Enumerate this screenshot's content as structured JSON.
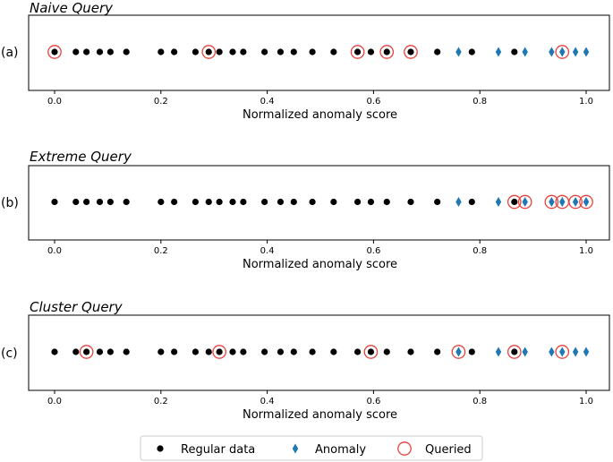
{
  "chart_data": [
    {
      "type": "scatter",
      "panel_label": "(a)",
      "title": "Naive Query",
      "xlabel": "Normalized anomaly score",
      "xlim": [
        0.0,
        1.0
      ],
      "xticks": [
        "0.0",
        "0.2",
        "0.4",
        "0.6",
        "0.8",
        "1.0"
      ],
      "regular": [
        0.0,
        0.04,
        0.06,
        0.085,
        0.105,
        0.135,
        0.2,
        0.225,
        0.265,
        0.29,
        0.31,
        0.335,
        0.355,
        0.395,
        0.425,
        0.45,
        0.485,
        0.525,
        0.57,
        0.595,
        0.625,
        0.67,
        0.72,
        0.785,
        0.865
      ],
      "anomaly": [
        0.76,
        0.835,
        0.885,
        0.935,
        0.955,
        0.98,
        1.0
      ],
      "queried": [
        0.0,
        0.29,
        0.57,
        0.625,
        0.67,
        0.955
      ]
    },
    {
      "type": "scatter",
      "panel_label": "(b)",
      "title": "Extreme Query",
      "xlabel": "Normalized anomaly score",
      "xlim": [
        0.0,
        1.0
      ],
      "xticks": [
        "0.0",
        "0.2",
        "0.4",
        "0.6",
        "0.8",
        "1.0"
      ],
      "regular": [
        0.0,
        0.04,
        0.06,
        0.085,
        0.105,
        0.135,
        0.2,
        0.225,
        0.265,
        0.29,
        0.31,
        0.335,
        0.355,
        0.395,
        0.425,
        0.45,
        0.485,
        0.525,
        0.57,
        0.595,
        0.625,
        0.67,
        0.72,
        0.785,
        0.865
      ],
      "anomaly": [
        0.76,
        0.835,
        0.885,
        0.935,
        0.955,
        0.98,
        1.0
      ],
      "queried": [
        0.865,
        0.885,
        0.935,
        0.955,
        0.98,
        1.0
      ]
    },
    {
      "type": "scatter",
      "panel_label": "(c)",
      "title": "Cluster Query",
      "xlabel": "Normalized anomaly score",
      "xlim": [
        0.0,
        1.0
      ],
      "xticks": [
        "0.0",
        "0.2",
        "0.4",
        "0.6",
        "0.8",
        "1.0"
      ],
      "regular": [
        0.0,
        0.04,
        0.06,
        0.085,
        0.105,
        0.135,
        0.2,
        0.225,
        0.265,
        0.29,
        0.31,
        0.335,
        0.355,
        0.395,
        0.425,
        0.45,
        0.485,
        0.525,
        0.57,
        0.595,
        0.625,
        0.67,
        0.72,
        0.785,
        0.865
      ],
      "anomaly": [
        0.76,
        0.835,
        0.885,
        0.935,
        0.955,
        0.98,
        1.0
      ],
      "queried": [
        0.06,
        0.31,
        0.595,
        0.76,
        0.865,
        0.955
      ]
    }
  ],
  "legend": {
    "placement": "bottom-center",
    "items": [
      {
        "key": "regular",
        "label": "Regular data"
      },
      {
        "key": "anomaly",
        "label": "Anomaly"
      },
      {
        "key": "queried",
        "label": "Queried"
      }
    ]
  },
  "colors": {
    "regular": "#000000",
    "anomaly": "#1f77b4",
    "queried": "#e8413b"
  }
}
